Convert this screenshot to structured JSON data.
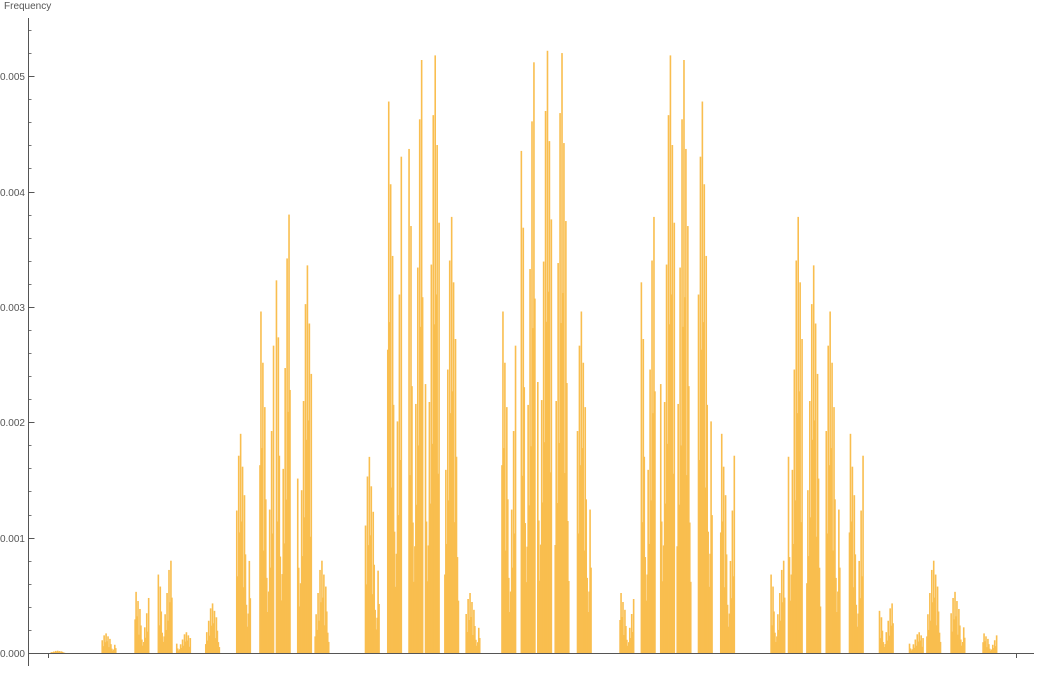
{
  "chart_data": {
    "type": "bar",
    "title": "",
    "xlabel": "",
    "ylabel": "Frequency",
    "ylim": [
      0,
      0.0054
    ],
    "yticks": [
      {
        "value": 0.0,
        "label": "0.000"
      },
      {
        "value": 0.001,
        "label": "0.001"
      },
      {
        "value": 0.002,
        "label": "0.002"
      },
      {
        "value": 0.003,
        "label": "0.003"
      },
      {
        "value": 0.004,
        "label": "0.004"
      },
      {
        "value": 0.005,
        "label": "0.005"
      }
    ],
    "y_minor_per_major": 5,
    "x_tick_positions": [
      0,
      1
    ],
    "grid": false,
    "legend": "none",
    "bar_color": "#F9BE4F",
    "axis_color": "#555555",
    "clusters": [
      {
        "center": 0.01,
        "peak": 2e-05
      },
      {
        "center": 0.063,
        "peak": 0.00017
      },
      {
        "center": 0.097,
        "peak": 0.00053
      },
      {
        "center": 0.121,
        "peak": 0.0008
      },
      {
        "center": 0.14,
        "peak": 0.00018
      },
      {
        "center": 0.17,
        "peak": 0.00043
      },
      {
        "center": 0.202,
        "peak": 0.0019
      },
      {
        "center": 0.226,
        "peak": 0.00296
      },
      {
        "center": 0.243,
        "peak": 0.0038
      },
      {
        "center": 0.265,
        "peak": 0.00336
      },
      {
        "center": 0.283,
        "peak": 0.0008
      },
      {
        "center": 0.335,
        "peak": 0.0017
      },
      {
        "center": 0.358,
        "peak": 0.00478
      },
      {
        "center": 0.38,
        "peak": 0.00514
      },
      {
        "center": 0.397,
        "peak": 0.00518
      },
      {
        "center": 0.417,
        "peak": 0.00378
      },
      {
        "center": 0.439,
        "peak": 0.00052
      },
      {
        "center": 0.476,
        "peak": 0.00296
      },
      {
        "center": 0.496,
        "peak": 0.00512
      },
      {
        "center": 0.513,
        "peak": 0.00522
      },
      {
        "center": 0.531,
        "peak": 0.0052
      },
      {
        "center": 0.554,
        "peak": 0.00296
      },
      {
        "center": 0.598,
        "peak": 0.00052
      },
      {
        "center": 0.62,
        "peak": 0.00378
      },
      {
        "center": 0.64,
        "peak": 0.00518
      },
      {
        "center": 0.657,
        "peak": 0.00514
      },
      {
        "center": 0.679,
        "peak": 0.00478
      },
      {
        "center": 0.702,
        "peak": 0.0019
      },
      {
        "center": 0.754,
        "peak": 0.0008
      },
      {
        "center": 0.772,
        "peak": 0.00378
      },
      {
        "center": 0.791,
        "peak": 0.00336
      },
      {
        "center": 0.811,
        "peak": 0.00296
      },
      {
        "center": 0.835,
        "peak": 0.0019
      },
      {
        "center": 0.866,
        "peak": 0.00043
      },
      {
        "center": 0.897,
        "peak": 0.00018
      },
      {
        "center": 0.915,
        "peak": 0.0008
      },
      {
        "center": 0.94,
        "peak": 0.00053
      },
      {
        "center": 0.973,
        "peak": 0.00017
      },
      {
        "center": 1.025,
        "peak": 2e-05
      }
    ]
  }
}
